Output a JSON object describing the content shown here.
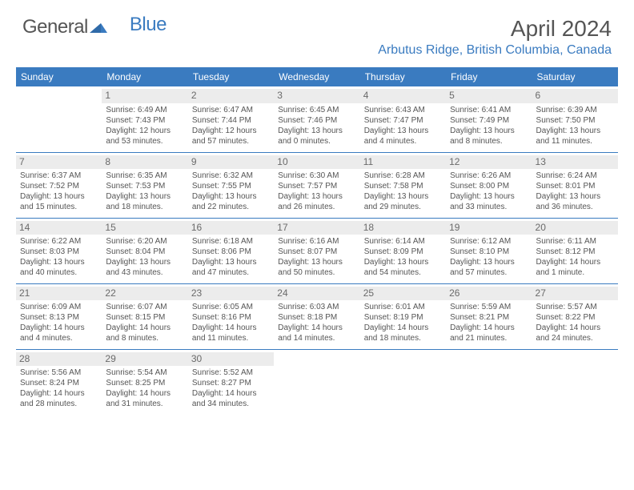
{
  "brand": {
    "part1": "General",
    "part2": "Blue"
  },
  "title": "April 2024",
  "location": "Arbutus Ridge, British Columbia, Canada",
  "colors": {
    "accent": "#3a7bc0",
    "daynum_bg": "#ececec",
    "text": "#555555"
  },
  "day_labels": [
    "Sunday",
    "Monday",
    "Tuesday",
    "Wednesday",
    "Thursday",
    "Friday",
    "Saturday"
  ],
  "weeks": [
    [
      {
        "day": "",
        "sunrise": "",
        "sunset": "",
        "daylight1": "",
        "daylight2": ""
      },
      {
        "day": "1",
        "sunrise": "Sunrise: 6:49 AM",
        "sunset": "Sunset: 7:43 PM",
        "daylight1": "Daylight: 12 hours",
        "daylight2": "and 53 minutes."
      },
      {
        "day": "2",
        "sunrise": "Sunrise: 6:47 AM",
        "sunset": "Sunset: 7:44 PM",
        "daylight1": "Daylight: 12 hours",
        "daylight2": "and 57 minutes."
      },
      {
        "day": "3",
        "sunrise": "Sunrise: 6:45 AM",
        "sunset": "Sunset: 7:46 PM",
        "daylight1": "Daylight: 13 hours",
        "daylight2": "and 0 minutes."
      },
      {
        "day": "4",
        "sunrise": "Sunrise: 6:43 AM",
        "sunset": "Sunset: 7:47 PM",
        "daylight1": "Daylight: 13 hours",
        "daylight2": "and 4 minutes."
      },
      {
        "day": "5",
        "sunrise": "Sunrise: 6:41 AM",
        "sunset": "Sunset: 7:49 PM",
        "daylight1": "Daylight: 13 hours",
        "daylight2": "and 8 minutes."
      },
      {
        "day": "6",
        "sunrise": "Sunrise: 6:39 AM",
        "sunset": "Sunset: 7:50 PM",
        "daylight1": "Daylight: 13 hours",
        "daylight2": "and 11 minutes."
      }
    ],
    [
      {
        "day": "7",
        "sunrise": "Sunrise: 6:37 AM",
        "sunset": "Sunset: 7:52 PM",
        "daylight1": "Daylight: 13 hours",
        "daylight2": "and 15 minutes."
      },
      {
        "day": "8",
        "sunrise": "Sunrise: 6:35 AM",
        "sunset": "Sunset: 7:53 PM",
        "daylight1": "Daylight: 13 hours",
        "daylight2": "and 18 minutes."
      },
      {
        "day": "9",
        "sunrise": "Sunrise: 6:32 AM",
        "sunset": "Sunset: 7:55 PM",
        "daylight1": "Daylight: 13 hours",
        "daylight2": "and 22 minutes."
      },
      {
        "day": "10",
        "sunrise": "Sunrise: 6:30 AM",
        "sunset": "Sunset: 7:57 PM",
        "daylight1": "Daylight: 13 hours",
        "daylight2": "and 26 minutes."
      },
      {
        "day": "11",
        "sunrise": "Sunrise: 6:28 AM",
        "sunset": "Sunset: 7:58 PM",
        "daylight1": "Daylight: 13 hours",
        "daylight2": "and 29 minutes."
      },
      {
        "day": "12",
        "sunrise": "Sunrise: 6:26 AM",
        "sunset": "Sunset: 8:00 PM",
        "daylight1": "Daylight: 13 hours",
        "daylight2": "and 33 minutes."
      },
      {
        "day": "13",
        "sunrise": "Sunrise: 6:24 AM",
        "sunset": "Sunset: 8:01 PM",
        "daylight1": "Daylight: 13 hours",
        "daylight2": "and 36 minutes."
      }
    ],
    [
      {
        "day": "14",
        "sunrise": "Sunrise: 6:22 AM",
        "sunset": "Sunset: 8:03 PM",
        "daylight1": "Daylight: 13 hours",
        "daylight2": "and 40 minutes."
      },
      {
        "day": "15",
        "sunrise": "Sunrise: 6:20 AM",
        "sunset": "Sunset: 8:04 PM",
        "daylight1": "Daylight: 13 hours",
        "daylight2": "and 43 minutes."
      },
      {
        "day": "16",
        "sunrise": "Sunrise: 6:18 AM",
        "sunset": "Sunset: 8:06 PM",
        "daylight1": "Daylight: 13 hours",
        "daylight2": "and 47 minutes."
      },
      {
        "day": "17",
        "sunrise": "Sunrise: 6:16 AM",
        "sunset": "Sunset: 8:07 PM",
        "daylight1": "Daylight: 13 hours",
        "daylight2": "and 50 minutes."
      },
      {
        "day": "18",
        "sunrise": "Sunrise: 6:14 AM",
        "sunset": "Sunset: 8:09 PM",
        "daylight1": "Daylight: 13 hours",
        "daylight2": "and 54 minutes."
      },
      {
        "day": "19",
        "sunrise": "Sunrise: 6:12 AM",
        "sunset": "Sunset: 8:10 PM",
        "daylight1": "Daylight: 13 hours",
        "daylight2": "and 57 minutes."
      },
      {
        "day": "20",
        "sunrise": "Sunrise: 6:11 AM",
        "sunset": "Sunset: 8:12 PM",
        "daylight1": "Daylight: 14 hours",
        "daylight2": "and 1 minute."
      }
    ],
    [
      {
        "day": "21",
        "sunrise": "Sunrise: 6:09 AM",
        "sunset": "Sunset: 8:13 PM",
        "daylight1": "Daylight: 14 hours",
        "daylight2": "and 4 minutes."
      },
      {
        "day": "22",
        "sunrise": "Sunrise: 6:07 AM",
        "sunset": "Sunset: 8:15 PM",
        "daylight1": "Daylight: 14 hours",
        "daylight2": "and 8 minutes."
      },
      {
        "day": "23",
        "sunrise": "Sunrise: 6:05 AM",
        "sunset": "Sunset: 8:16 PM",
        "daylight1": "Daylight: 14 hours",
        "daylight2": "and 11 minutes."
      },
      {
        "day": "24",
        "sunrise": "Sunrise: 6:03 AM",
        "sunset": "Sunset: 8:18 PM",
        "daylight1": "Daylight: 14 hours",
        "daylight2": "and 14 minutes."
      },
      {
        "day": "25",
        "sunrise": "Sunrise: 6:01 AM",
        "sunset": "Sunset: 8:19 PM",
        "daylight1": "Daylight: 14 hours",
        "daylight2": "and 18 minutes."
      },
      {
        "day": "26",
        "sunrise": "Sunrise: 5:59 AM",
        "sunset": "Sunset: 8:21 PM",
        "daylight1": "Daylight: 14 hours",
        "daylight2": "and 21 minutes."
      },
      {
        "day": "27",
        "sunrise": "Sunrise: 5:57 AM",
        "sunset": "Sunset: 8:22 PM",
        "daylight1": "Daylight: 14 hours",
        "daylight2": "and 24 minutes."
      }
    ],
    [
      {
        "day": "28",
        "sunrise": "Sunrise: 5:56 AM",
        "sunset": "Sunset: 8:24 PM",
        "daylight1": "Daylight: 14 hours",
        "daylight2": "and 28 minutes."
      },
      {
        "day": "29",
        "sunrise": "Sunrise: 5:54 AM",
        "sunset": "Sunset: 8:25 PM",
        "daylight1": "Daylight: 14 hours",
        "daylight2": "and 31 minutes."
      },
      {
        "day": "30",
        "sunrise": "Sunrise: 5:52 AM",
        "sunset": "Sunset: 8:27 PM",
        "daylight1": "Daylight: 14 hours",
        "daylight2": "and 34 minutes."
      },
      {
        "day": "",
        "sunrise": "",
        "sunset": "",
        "daylight1": "",
        "daylight2": ""
      },
      {
        "day": "",
        "sunrise": "",
        "sunset": "",
        "daylight1": "",
        "daylight2": ""
      },
      {
        "day": "",
        "sunrise": "",
        "sunset": "",
        "daylight1": "",
        "daylight2": ""
      },
      {
        "day": "",
        "sunrise": "",
        "sunset": "",
        "daylight1": "",
        "daylight2": ""
      }
    ]
  ]
}
